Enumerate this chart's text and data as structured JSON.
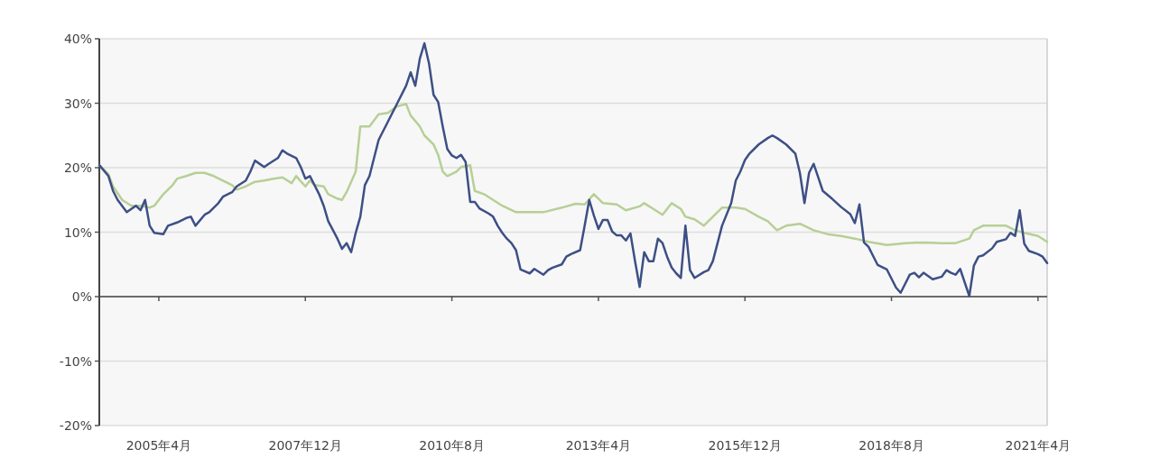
{
  "chart_data": {
    "type": "line",
    "xlim": [
      "2004-03",
      "2021-06"
    ],
    "ylim": [
      -20,
      40
    ],
    "xticks": [
      {
        "value": "2005-04",
        "label": "2005年4月"
      },
      {
        "value": "2007-12",
        "label": "2007年12月"
      },
      {
        "value": "2010-08",
        "label": "2010年8月"
      },
      {
        "value": "2013-04",
        "label": "2013年4月"
      },
      {
        "value": "2015-12",
        "label": "2015年12月"
      },
      {
        "value": "2018-08",
        "label": "2018年8月"
      },
      {
        "value": "2021-04",
        "label": "2021年4月"
      }
    ],
    "yticks": [
      {
        "value": -20,
        "label": "-20%"
      },
      {
        "value": -10,
        "label": "-10%"
      },
      {
        "value": 0,
        "label": "0%"
      },
      {
        "value": 10,
        "label": "10%"
      },
      {
        "value": 20,
        "label": "20%"
      },
      {
        "value": 30,
        "label": "30%"
      },
      {
        "value": 40,
        "label": "40%"
      }
    ],
    "grid": "y",
    "marker": "none",
    "line_style": "solid",
    "series": [
      {
        "color": "#b7cf96",
        "x": [
          "2004-03",
          "2004-05",
          "2004-06",
          "2004-08",
          "2004-10",
          "2004-12",
          "2005-02",
          "2005-03",
          "2005-05",
          "2005-07",
          "2005-08",
          "2005-10",
          "2005-12",
          "2006-02",
          "2006-04",
          "2006-06",
          "2006-08",
          "2006-09",
          "2006-11",
          "2007-01",
          "2007-03",
          "2007-05",
          "2007-07",
          "2007-09",
          "2007-10",
          "2007-12",
          "2008-01",
          "2008-02",
          "2008-04",
          "2008-05",
          "2008-07",
          "2008-08",
          "2008-09",
          "2008-11",
          "2008-12",
          "2009-02",
          "2009-04",
          "2009-06",
          "2009-08",
          "2009-10",
          "2009-11",
          "2010-01",
          "2010-02",
          "2010-04",
          "2010-05",
          "2010-06",
          "2010-07",
          "2010-09",
          "2010-10",
          "2010-12",
          "2011-01",
          "2011-03",
          "2011-05",
          "2011-07",
          "2011-10",
          "2012-01",
          "2012-04",
          "2012-08",
          "2012-11",
          "2013-01",
          "2013-03",
          "2013-05",
          "2013-08",
          "2013-10",
          "2014-01",
          "2014-02",
          "2014-04",
          "2014-06",
          "2014-08",
          "2014-10",
          "2014-11",
          "2015-01",
          "2015-03",
          "2015-05",
          "2015-06",
          "2015-07",
          "2015-10",
          "2015-12",
          "2016-03",
          "2016-05",
          "2016-07",
          "2016-09",
          "2016-12",
          "2017-03",
          "2017-06",
          "2017-09",
          "2017-12",
          "2018-03",
          "2018-07",
          "2018-11",
          "2019-03",
          "2019-07",
          "2019-10",
          "2020-01",
          "2020-02",
          "2020-04",
          "2020-07",
          "2020-09",
          "2020-11",
          "2021-01",
          "2021-04",
          "2021-06"
        ],
        "values": [
          20.4,
          19.0,
          17.1,
          15.0,
          14.1,
          14.1,
          13.8,
          14.1,
          15.9,
          17.3,
          18.3,
          18.7,
          19.2,
          19.2,
          18.7,
          18.0,
          17.3,
          16.6,
          17.1,
          17.8,
          18.0,
          18.3,
          18.5,
          17.6,
          18.7,
          17.1,
          18.0,
          17.3,
          17.1,
          15.9,
          15.2,
          15.0,
          16.2,
          19.4,
          26.4,
          26.4,
          28.3,
          28.5,
          29.5,
          29.9,
          28.1,
          26.4,
          25.0,
          23.6,
          22.0,
          19.4,
          18.7,
          19.4,
          20.1,
          20.4,
          16.4,
          15.9,
          15.0,
          14.1,
          13.1,
          13.1,
          13.1,
          13.8,
          14.4,
          14.3,
          15.9,
          14.5,
          14.3,
          13.4,
          14.0,
          14.5,
          13.6,
          12.7,
          14.5,
          13.6,
          12.4,
          12.0,
          11.0,
          12.4,
          13.1,
          13.8,
          13.8,
          13.6,
          12.4,
          11.7,
          10.3,
          11.0,
          11.3,
          10.3,
          9.7,
          9.4,
          9.0,
          8.5,
          8.0,
          8.3,
          8.4,
          8.3,
          8.3,
          9.0,
          10.3,
          11.0,
          11.0,
          11.0,
          10.3,
          9.9,
          9.4,
          8.5
        ]
      },
      {
        "color": "#3d4f85",
        "x": [
          "2004-03",
          "2004-05",
          "2004-06",
          "2004-07",
          "2004-09",
          "2004-11",
          "2004-12",
          "2005-01",
          "2005-02",
          "2005-03",
          "2005-05",
          "2005-06",
          "2005-08",
          "2005-10",
          "2005-11",
          "2005-12",
          "2006-02",
          "2006-03",
          "2006-05",
          "2006-06",
          "2006-08",
          "2006-09",
          "2006-11",
          "2006-12",
          "2007-01",
          "2007-03",
          "2007-04",
          "2007-06",
          "2007-07",
          "2007-08",
          "2007-10",
          "2007-11",
          "2007-12",
          "2008-01",
          "2008-03",
          "2008-04",
          "2008-05",
          "2008-07",
          "2008-08",
          "2008-09",
          "2008-10",
          "2008-11",
          "2008-12",
          "2009-01",
          "2009-02",
          "2009-03",
          "2009-04",
          "2009-06",
          "2009-08",
          "2009-10",
          "2009-11",
          "2009-12",
          "2010-01",
          "2010-02",
          "2010-03",
          "2010-04",
          "2010-05",
          "2010-06",
          "2010-07",
          "2010-08",
          "2010-09",
          "2010-10",
          "2010-11",
          "2010-12",
          "2011-01",
          "2011-02",
          "2011-04",
          "2011-05",
          "2011-06",
          "2011-07",
          "2011-08",
          "2011-09",
          "2011-10",
          "2011-11",
          "2012-01",
          "2012-02",
          "2012-04",
          "2012-05",
          "2012-06",
          "2012-08",
          "2012-09",
          "2012-10",
          "2012-12",
          "2013-01",
          "2013-02",
          "2013-03",
          "2013-04",
          "2013-05",
          "2013-06",
          "2013-07",
          "2013-08",
          "2013-09",
          "2013-10",
          "2013-11",
          "2013-12",
          "2014-01",
          "2014-02",
          "2014-03",
          "2014-04",
          "2014-05",
          "2014-06",
          "2014-07",
          "2014-08",
          "2014-09",
          "2014-10",
          "2014-11",
          "2014-12",
          "2015-01",
          "2015-03",
          "2015-04",
          "2015-05",
          "2015-07",
          "2015-09",
          "2015-10",
          "2015-11",
          "2015-12",
          "2016-01",
          "2016-03",
          "2016-05",
          "2016-06",
          "2016-07",
          "2016-09",
          "2016-11",
          "2016-12",
          "2017-01",
          "2017-02",
          "2017-03",
          "2017-04",
          "2017-05",
          "2017-07",
          "2017-09",
          "2017-11",
          "2017-12",
          "2018-01",
          "2018-02",
          "2018-03",
          "2018-04",
          "2018-05",
          "2018-07",
          "2018-08",
          "2018-09",
          "2018-10",
          "2018-11",
          "2018-12",
          "2019-01",
          "2019-02",
          "2019-03",
          "2019-05",
          "2019-07",
          "2019-08",
          "2019-09",
          "2019-10",
          "2019-11",
          "2020-01",
          "2020-02",
          "2020-03",
          "2020-04",
          "2020-06",
          "2020-07",
          "2020-09",
          "2020-10",
          "2020-11",
          "2020-12",
          "2021-01",
          "2021-02",
          "2021-04",
          "2021-05",
          "2021-06"
        ],
        "values": [
          20.4,
          18.7,
          16.4,
          15.0,
          13.1,
          14.1,
          13.4,
          15.0,
          11.0,
          9.9,
          9.7,
          11.0,
          11.5,
          12.2,
          12.4,
          11.0,
          12.7,
          13.1,
          14.5,
          15.5,
          16.2,
          17.1,
          18.0,
          19.4,
          21.1,
          20.1,
          20.6,
          21.5,
          22.7,
          22.2,
          21.5,
          20.1,
          18.3,
          18.7,
          15.9,
          14.1,
          11.7,
          9.0,
          7.4,
          8.3,
          6.9,
          9.9,
          12.4,
          17.3,
          18.7,
          21.5,
          24.3,
          27.1,
          29.9,
          32.7,
          34.8,
          32.7,
          36.9,
          39.3,
          36.2,
          31.3,
          30.2,
          26.4,
          22.9,
          21.9,
          21.5,
          22.0,
          20.9,
          14.7,
          14.7,
          13.7,
          12.9,
          12.4,
          11.0,
          9.9,
          9.0,
          8.3,
          7.2,
          4.2,
          3.6,
          4.3,
          3.4,
          4.1,
          4.5,
          5.0,
          6.2,
          6.6,
          7.2,
          11.0,
          15.0,
          12.6,
          10.5,
          11.9,
          11.9,
          10.1,
          9.5,
          9.5,
          8.7,
          9.8,
          5.5,
          1.5,
          6.9,
          5.5,
          5.5,
          9.0,
          8.3,
          6.2,
          4.5,
          3.6,
          2.9,
          11.0,
          4.1,
          2.9,
          3.8,
          4.1,
          5.5,
          11.0,
          14.5,
          18.0,
          19.4,
          21.2,
          22.2,
          23.6,
          24.6,
          25.0,
          24.6,
          23.6,
          22.2,
          19.2,
          14.5,
          19.2,
          20.6,
          18.5,
          16.4,
          15.2,
          13.9,
          12.8,
          11.4,
          14.3,
          8.4,
          7.7,
          6.3,
          4.9,
          4.2,
          2.8,
          1.4,
          0.6,
          2.0,
          3.4,
          3.7,
          3.0,
          3.7,
          2.7,
          3.1,
          4.1,
          3.7,
          3.4,
          4.3,
          0.1,
          4.8,
          6.2,
          6.4,
          7.5,
          8.5,
          8.9,
          9.9,
          9.4,
          13.4,
          8.2,
          7.1,
          6.6,
          6.2,
          5.2
        ]
      }
    ]
  }
}
